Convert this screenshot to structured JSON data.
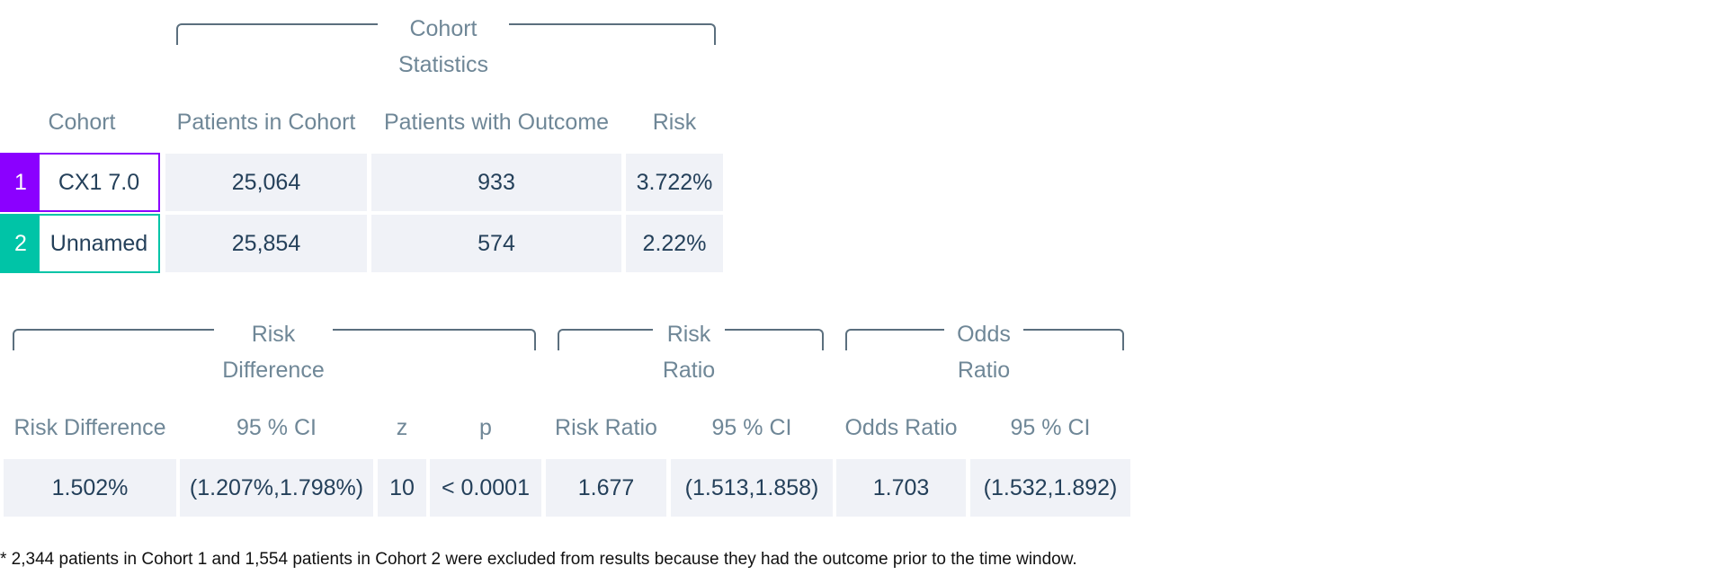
{
  "cohort_statistics": {
    "group_title": "Cohort Statistics",
    "headers": {
      "cohort": "Cohort",
      "patients_in_cohort": "Patients in Cohort",
      "patients_with_outcome": "Patients with Outcome",
      "risk": "Risk"
    },
    "rows": [
      {
        "index": "1",
        "name": "CX1 7.0",
        "patients": "25,064",
        "with_outcome": "933",
        "risk": "3.722%",
        "color": "#8b00ff"
      },
      {
        "index": "2",
        "name": "Unnamed",
        "patients": "25,854",
        "with_outcome": "574",
        "risk": "2.22%",
        "color": "#00c4a7"
      }
    ]
  },
  "comparison": {
    "groups": {
      "risk_difference": "Risk Difference",
      "risk_ratio": "Risk Ratio",
      "odds_ratio": "Odds Ratio"
    },
    "headers": {
      "risk_difference": "Risk Difference",
      "rd_ci": "95 % CI",
      "z": "z",
      "p": "p",
      "risk_ratio": "Risk Ratio",
      "rr_ci": "95 % CI",
      "odds_ratio": "Odds Ratio",
      "or_ci": "95 % CI"
    },
    "values": {
      "risk_difference": "1.502%",
      "rd_ci": "(1.207%,1.798%)",
      "z": "10",
      "p": "< 0.0001",
      "risk_ratio": "1.677",
      "rr_ci": "(1.513,1.858)",
      "odds_ratio": "1.703",
      "or_ci": "(1.532,1.892)"
    }
  },
  "footnote": "* 2,344 patients in Cohort 1 and 1,554 patients in Cohort 2 were excluded from results because they had the outcome prior to the time window."
}
